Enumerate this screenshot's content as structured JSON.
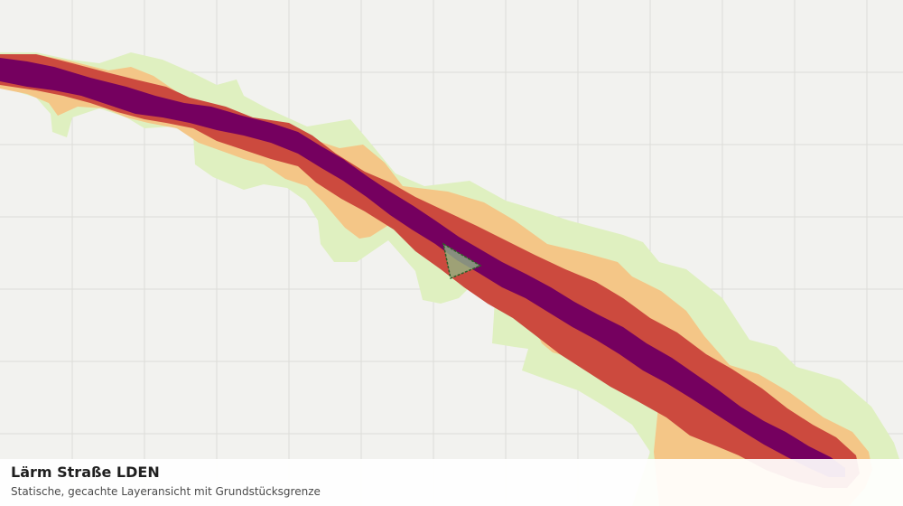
{
  "map": {
    "layer_title": "Lärm Straße LDEN",
    "layer_subtitle": "Statische, gecachte Layeransicht mit Grundstücksgrenze",
    "colors": {
      "background": "#f2f2ef",
      "grid": "#dcdcd8",
      "band_outer": "#dff0c0",
      "band_light": "#f4c687",
      "band_medium": "#cc4a3e",
      "band_core": "#75005f",
      "parcel_fill": "#8fbf8a",
      "parcel_stroke": "#2f5f2a"
    }
  }
}
